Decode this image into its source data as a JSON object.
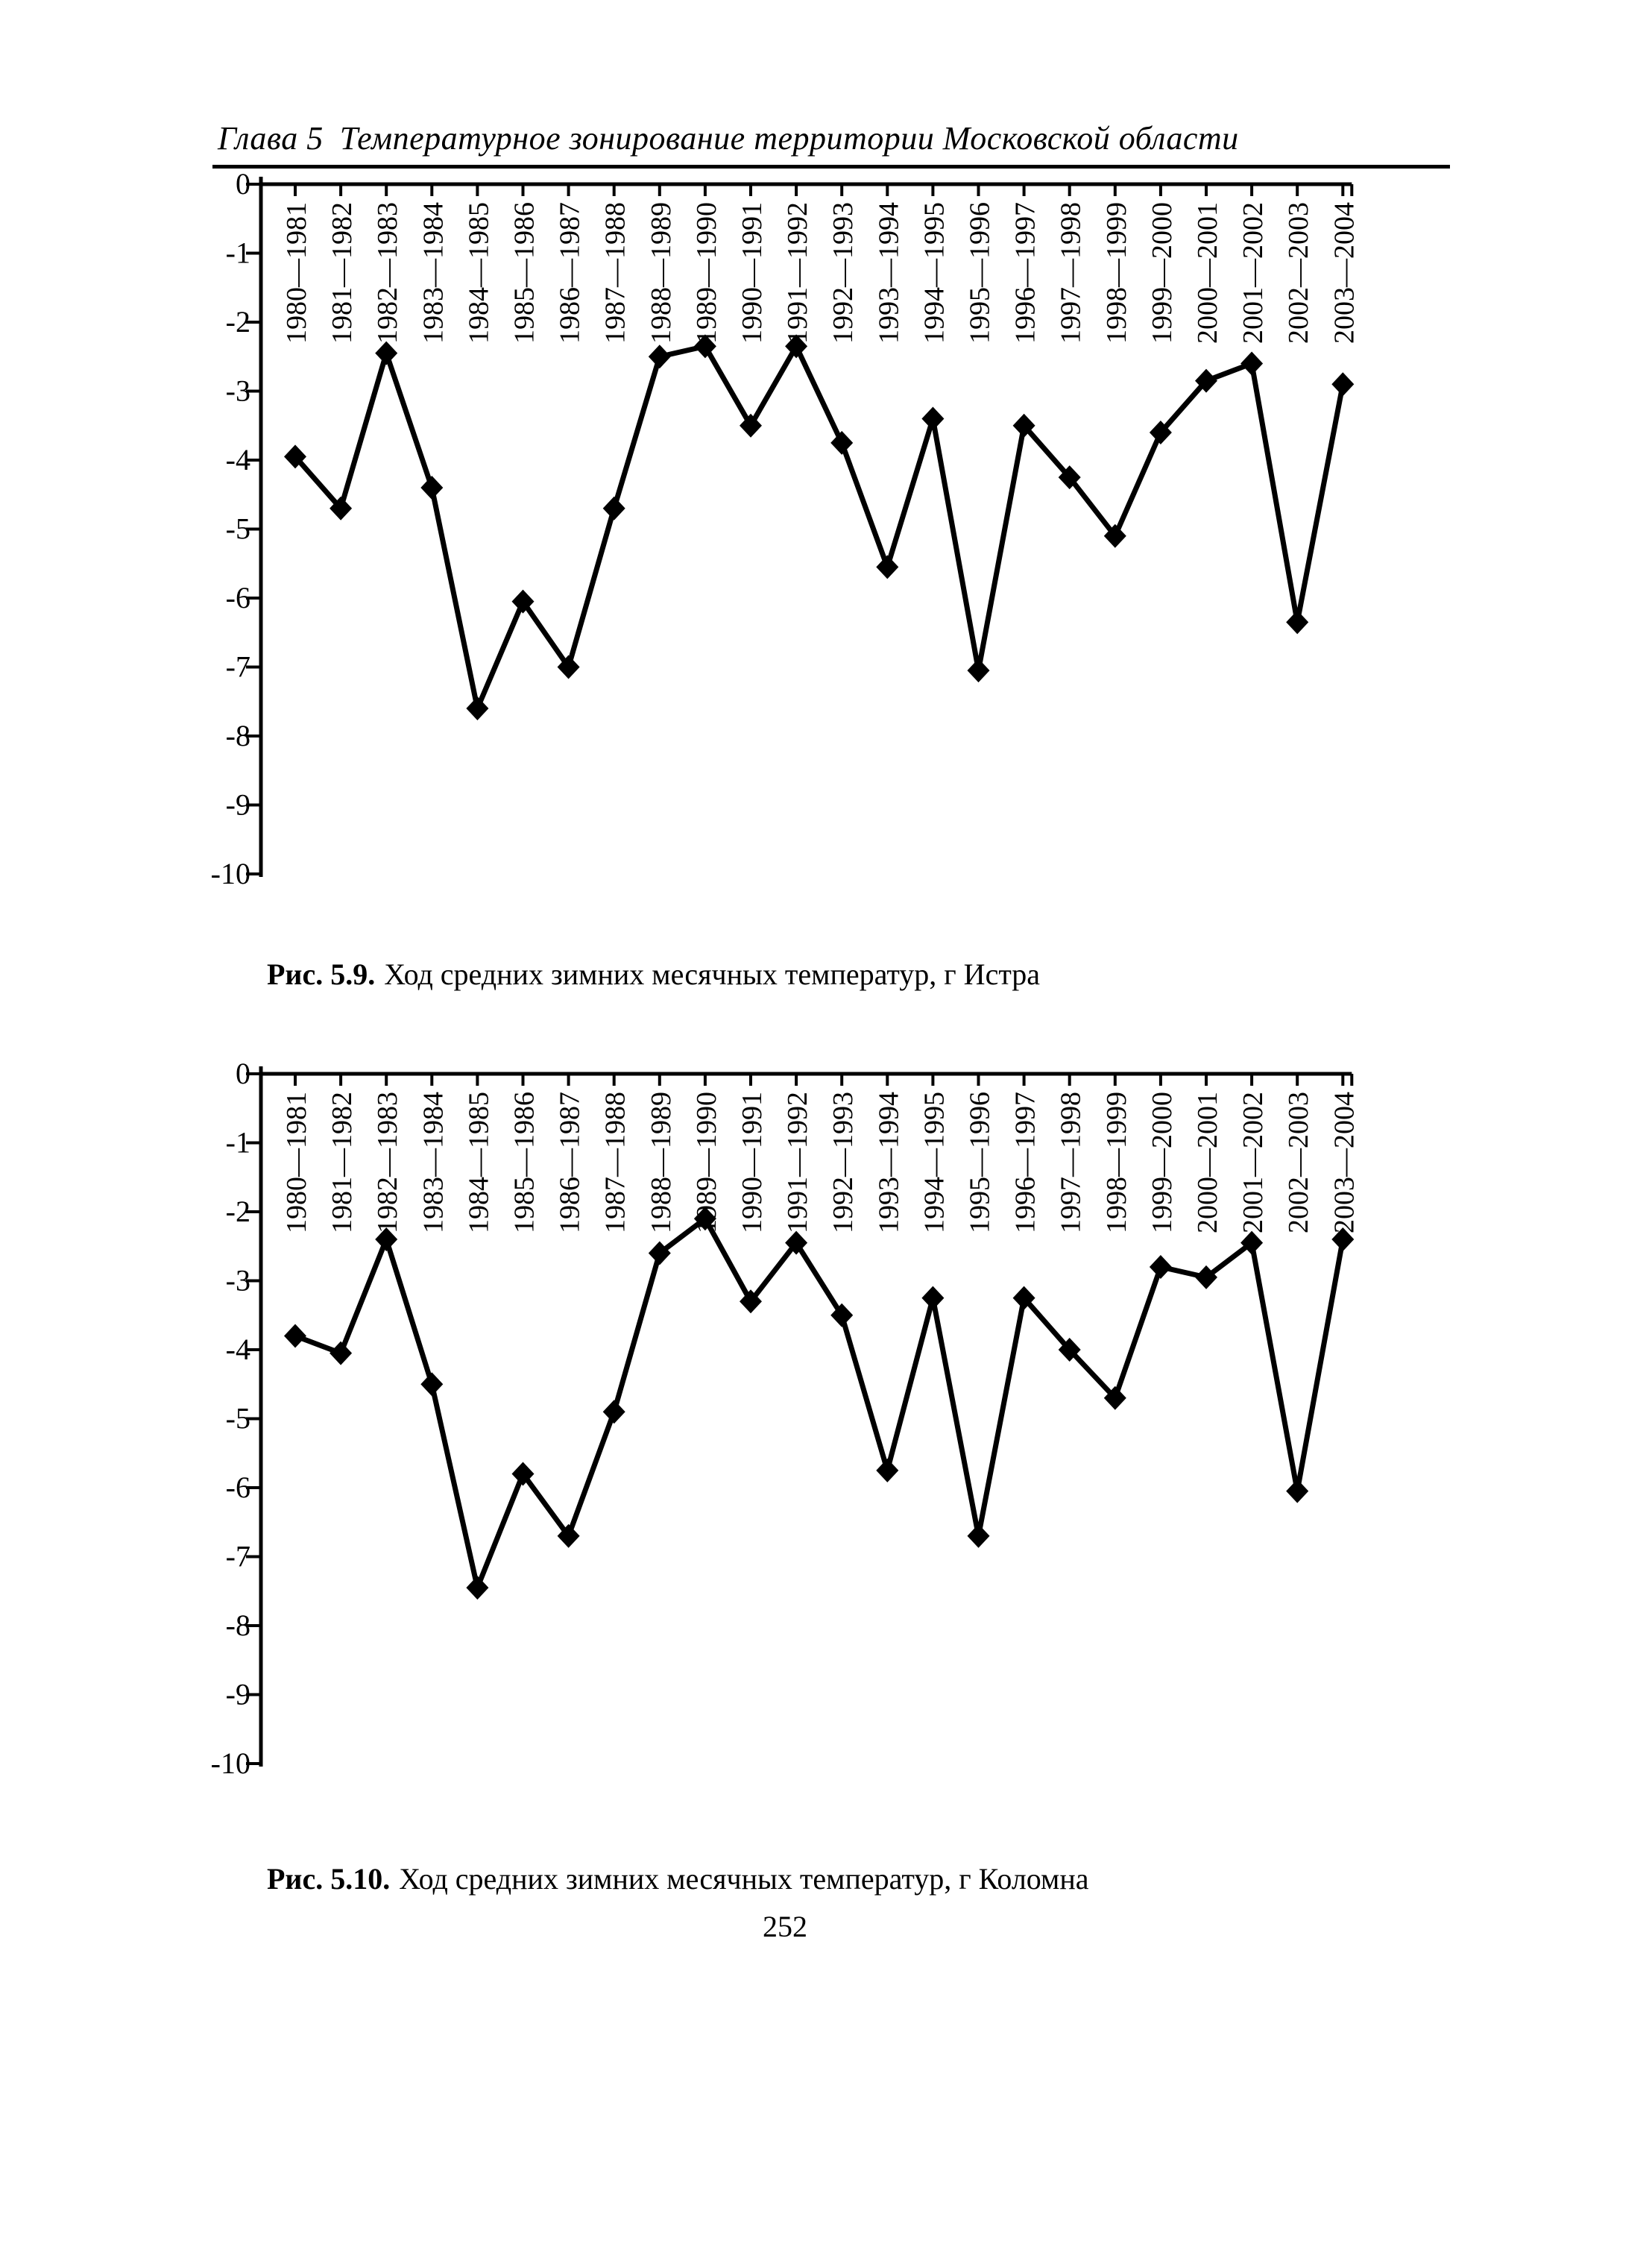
{
  "page": {
    "header_chapter": "Глава 5",
    "header_title": "Температурное зонирование территории Московской области",
    "page_number": "252"
  },
  "figures": [
    {
      "caption_label": "Рис. 5.9.",
      "caption_text": "Ход средних зимних месячных температур, г  Истра"
    },
    {
      "caption_label": "Рис. 5.10.",
      "caption_text": "Ход средних зимних месячных температур, г  Коломна"
    }
  ],
  "chart_data": [
    {
      "type": "line",
      "title": "Ход средних зимних месячных температур, г Истра",
      "categories": [
        "1980—1981",
        "1981—1982",
        "1982—1983",
        "1983—1984",
        "1984—1985",
        "1985—1986",
        "1986—1987",
        "1987—1988",
        "1988—1989",
        "1989—1990",
        "1990—1991",
        "1991—1992",
        "1992—1993",
        "1993—1994",
        "1994—1995",
        "1995—1996",
        "1996—1997",
        "1997—1998",
        "1998—1999",
        "1999—2000",
        "2000—2001",
        "2001—2002",
        "2002—2003",
        "2003—2004"
      ],
      "series": [
        {
          "name": "Истра",
          "values": [
            -3.95,
            -4.7,
            -2.45,
            -4.4,
            -7.6,
            -6.05,
            -7.0,
            -4.7,
            -2.5,
            -2.35,
            -3.5,
            -2.35,
            -3.75,
            -5.55,
            -3.4,
            -7.05,
            -3.5,
            -4.25,
            -5.1,
            -3.6,
            -2.85,
            -2.6,
            -6.35,
            -2.9
          ]
        }
      ],
      "xlabel": "",
      "ylabel": "",
      "ylim": [
        -10,
        0
      ],
      "yticks": [
        0,
        -1,
        -2,
        -3,
        -4,
        -5,
        -6,
        -7,
        -8,
        -9,
        -10
      ],
      "grid": false,
      "legend": "none",
      "marker": "diamond",
      "color": "#000000"
    },
    {
      "type": "line",
      "title": "Ход средних зимних месячных температур, г Коломна",
      "categories": [
        "1980—1981",
        "1981—1982",
        "1982—1983",
        "1983—1984",
        "1984—1985",
        "1985—1986",
        "1986—1987",
        "1987—1988",
        "1988—1989",
        "1989—1990",
        "1990—1991",
        "1991—1992",
        "1992—1993",
        "1993—1994",
        "1994—1995",
        "1995—1996",
        "1996—1997",
        "1997—1998",
        "1998—1999",
        "1999—2000",
        "2000—2001",
        "2001—2002",
        "2002—2003",
        "2003—2004"
      ],
      "series": [
        {
          "name": "Коломна",
          "values": [
            -3.8,
            -4.05,
            -2.4,
            -4.5,
            -7.45,
            -5.8,
            -6.7,
            -4.9,
            -2.6,
            -2.1,
            -3.3,
            -2.45,
            -3.5,
            -5.75,
            -3.25,
            -6.7,
            -3.25,
            -4.0,
            -4.7,
            -2.8,
            -2.95,
            -2.45,
            -6.05,
            -2.4
          ]
        }
      ],
      "xlabel": "",
      "ylabel": "",
      "ylim": [
        -10,
        0
      ],
      "yticks": [
        0,
        -1,
        -2,
        -3,
        -4,
        -5,
        -6,
        -7,
        -8,
        -9,
        -10
      ],
      "grid": false,
      "legend": "none",
      "marker": "diamond",
      "color": "#000000"
    }
  ]
}
